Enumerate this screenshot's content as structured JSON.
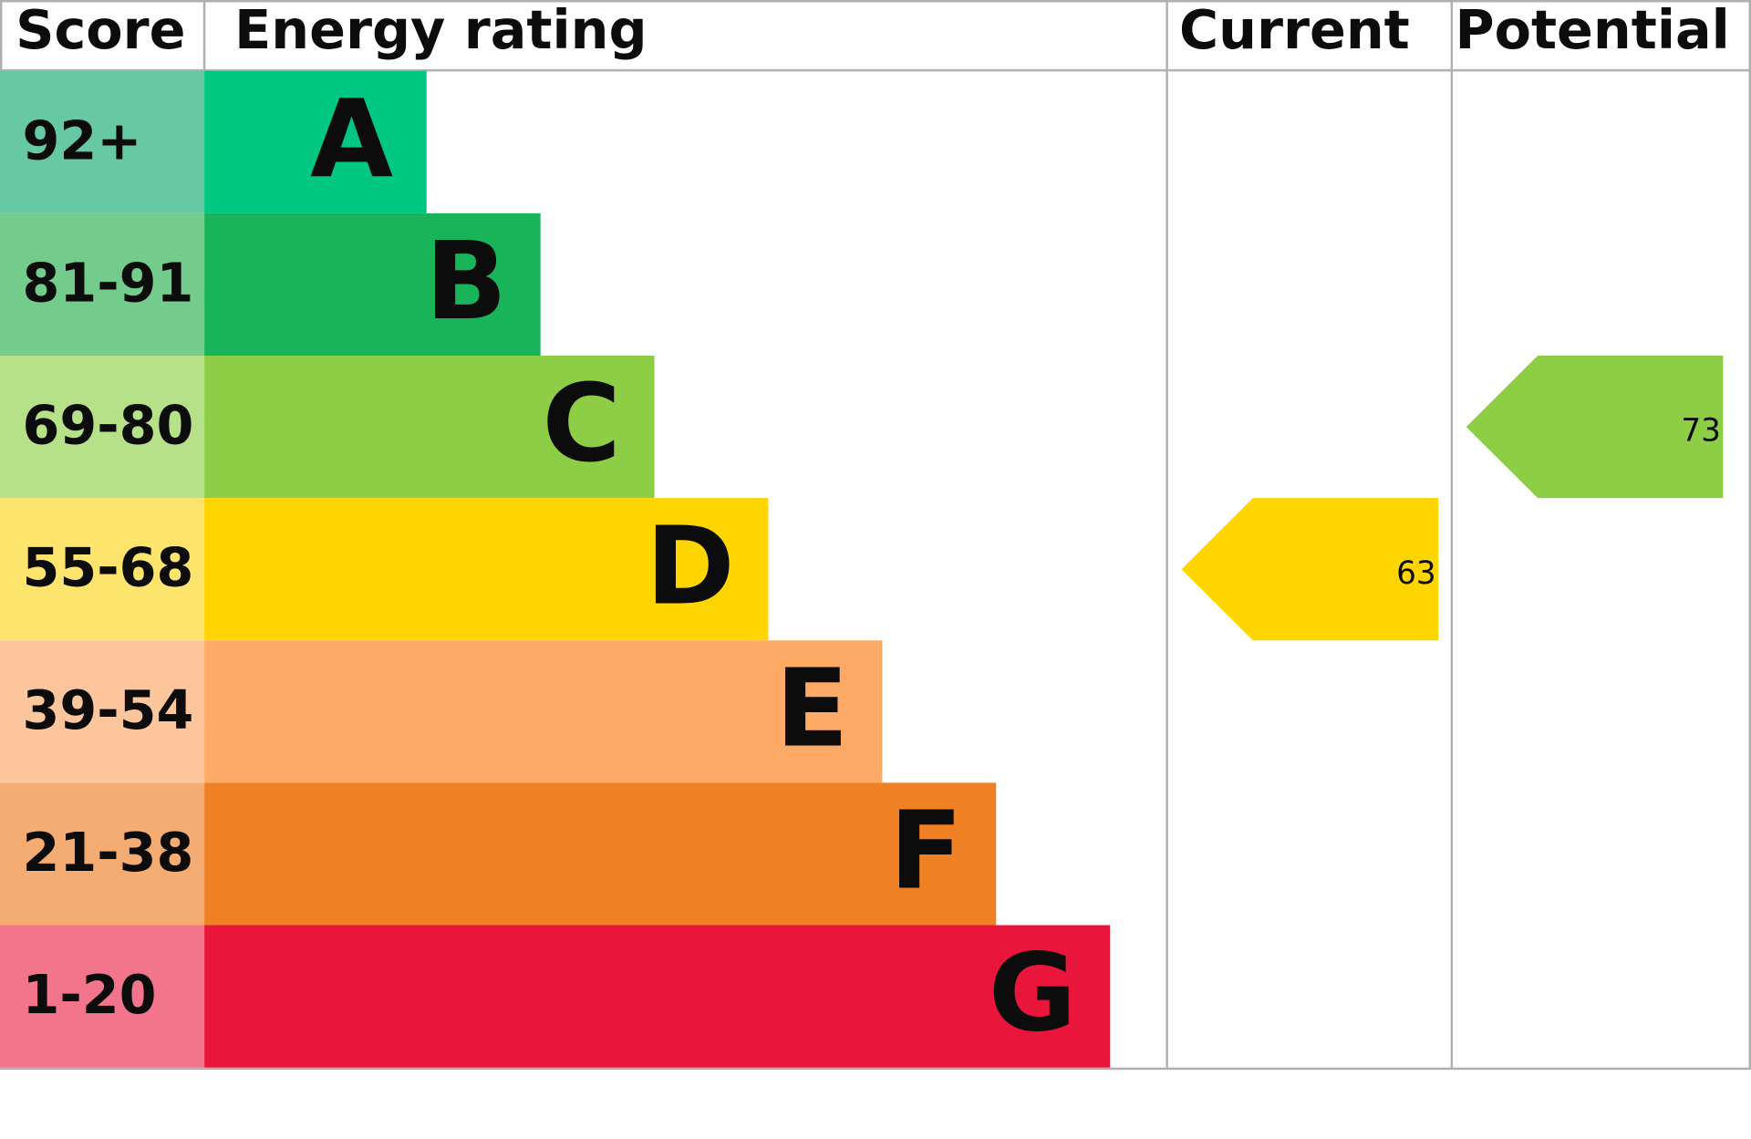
{
  "header": {
    "score": "Score",
    "energy_rating": "Energy rating",
    "current": "Current",
    "potential": "Potential"
  },
  "bands": [
    {
      "score": "92+",
      "letter": "A",
      "score_color": "#66c9a4",
      "color": "#00c781"
    },
    {
      "score": "81-91",
      "letter": "B",
      "score_color": "#74cc8c",
      "color": "#19b459"
    },
    {
      "score": "69-80",
      "letter": "C",
      "score_color": "#b7e189",
      "color": "#8dce46"
    },
    {
      "score": "55-68",
      "letter": "D",
      "score_color": "#fde46d",
      "color": "#ffd500"
    },
    {
      "score": "39-54",
      "letter": "E",
      "score_color": "#fdc69c",
      "color": "#fcaa65"
    },
    {
      "score": "21-38",
      "letter": "F",
      "score_color": "#f4ac72",
      "color": "#ef8023"
    },
    {
      "score": "1-20",
      "letter": "G",
      "score_color": "#f2758b",
      "color": "#e9153b"
    }
  ],
  "current": {
    "value": 63,
    "color": "#ffd500"
  },
  "potential": {
    "value": 73,
    "color": "#8dce46"
  }
}
